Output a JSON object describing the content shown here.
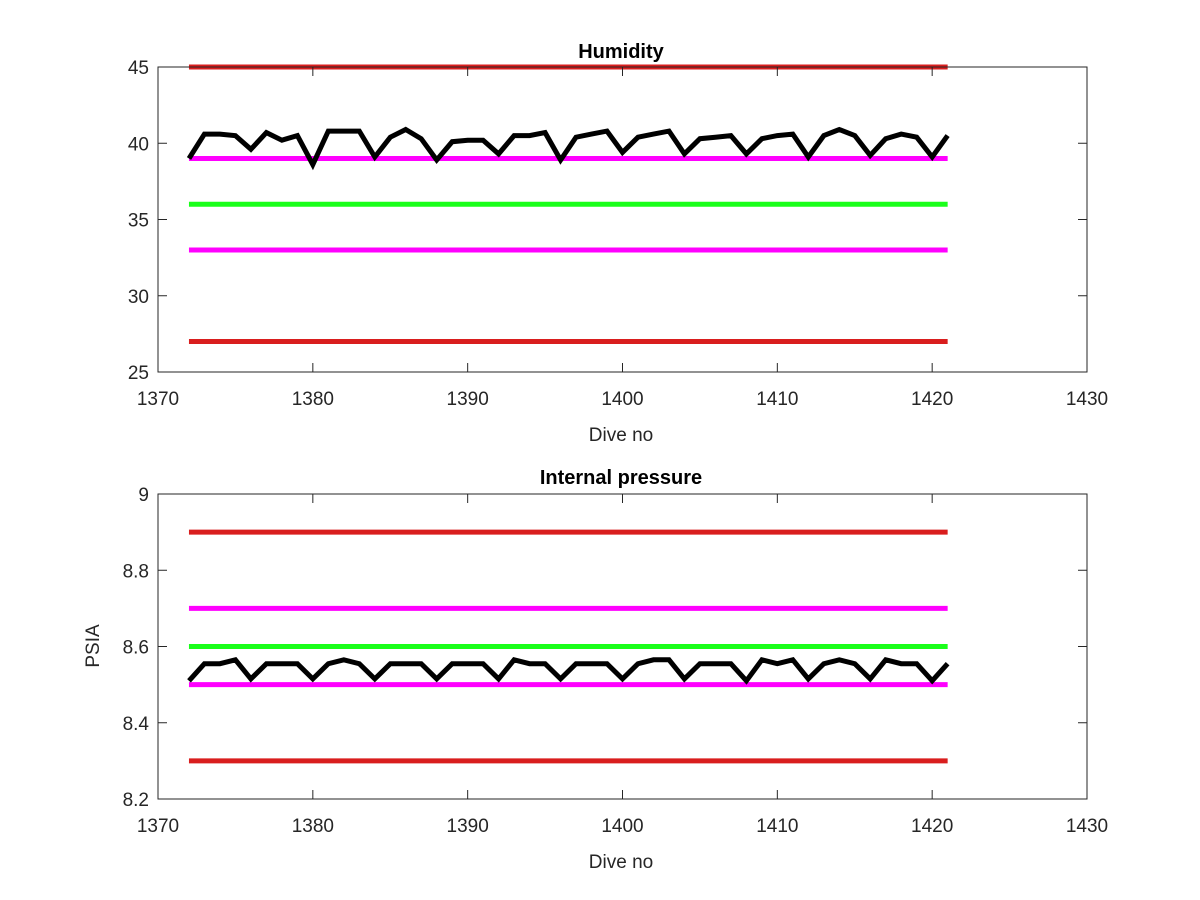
{
  "chart_data": [
    {
      "type": "line",
      "title": "Humidity",
      "xlabel": "Dive no",
      "ylabel": "",
      "xlim": [
        1370,
        1430
      ],
      "ylim": [
        25,
        45
      ],
      "xticks": [
        "1370",
        "1380",
        "1390",
        "1400",
        "1410",
        "1420",
        "1430"
      ],
      "yticks": [
        "25",
        "30",
        "35",
        "40",
        "45"
      ],
      "grid": false,
      "legend": "none",
      "reference_lines": [
        {
          "y": 45,
          "x_range": [
            1372,
            1421
          ],
          "color": "#d91e1e"
        },
        {
          "y": 39,
          "x_range": [
            1372,
            1421
          ],
          "color": "#ff00ff"
        },
        {
          "y": 36,
          "x_range": [
            1372,
            1421
          ],
          "color": "#1aff1a"
        },
        {
          "y": 33,
          "x_range": [
            1372,
            1421
          ],
          "color": "#ff00ff"
        },
        {
          "y": 27,
          "x_range": [
            1372,
            1421
          ],
          "color": "#d91e1e"
        }
      ],
      "series": [
        {
          "color": "#000000",
          "x": [
            1372,
            1373,
            1374,
            1375,
            1376,
            1377,
            1378,
            1379,
            1380,
            1381,
            1382,
            1383,
            1384,
            1385,
            1386,
            1387,
            1388,
            1389,
            1390,
            1391,
            1392,
            1393,
            1394,
            1395,
            1396,
            1397,
            1398,
            1399,
            1400,
            1401,
            1402,
            1403,
            1404,
            1405,
            1406,
            1407,
            1408,
            1409,
            1410,
            1411,
            1412,
            1413,
            1414,
            1415,
            1416,
            1417,
            1418,
            1419,
            1420,
            1421
          ],
          "y": [
            39.0,
            40.6,
            40.6,
            40.5,
            39.6,
            40.7,
            40.2,
            40.5,
            38.6,
            40.8,
            40.8,
            40.8,
            39.1,
            40.4,
            40.9,
            40.3,
            38.9,
            40.1,
            40.2,
            40.2,
            39.3,
            40.5,
            40.5,
            40.7,
            38.9,
            40.4,
            40.6,
            40.8,
            39.4,
            40.4,
            40.6,
            40.8,
            39.3,
            40.3,
            40.4,
            40.5,
            39.3,
            40.3,
            40.5,
            40.6,
            39.1,
            40.5,
            40.9,
            40.5,
            39.2,
            40.3,
            40.6,
            40.4,
            39.1,
            40.5
          ]
        }
      ]
    },
    {
      "type": "line",
      "title": "Internal pressure",
      "xlabel": "Dive no",
      "ylabel": "PSIA",
      "xlim": [
        1370,
        1430
      ],
      "ylim": [
        8.2,
        9.0
      ],
      "xticks": [
        "1370",
        "1380",
        "1390",
        "1400",
        "1410",
        "1420",
        "1430"
      ],
      "yticks": [
        "8.2",
        "8.4",
        "8.6",
        "8.8",
        "9"
      ],
      "grid": false,
      "legend": "none",
      "reference_lines": [
        {
          "y": 8.9,
          "x_range": [
            1372,
            1421
          ],
          "color": "#d91e1e"
        },
        {
          "y": 8.7,
          "x_range": [
            1372,
            1421
          ],
          "color": "#ff00ff"
        },
        {
          "y": 8.6,
          "x_range": [
            1372,
            1421
          ],
          "color": "#1aff1a"
        },
        {
          "y": 8.5,
          "x_range": [
            1372,
            1421
          ],
          "color": "#ff00ff"
        },
        {
          "y": 8.3,
          "x_range": [
            1372,
            1421
          ],
          "color": "#d91e1e"
        }
      ],
      "series": [
        {
          "color": "#000000",
          "x": [
            1372,
            1373,
            1374,
            1375,
            1376,
            1377,
            1378,
            1379,
            1380,
            1381,
            1382,
            1383,
            1384,
            1385,
            1386,
            1387,
            1388,
            1389,
            1390,
            1391,
            1392,
            1393,
            1394,
            1395,
            1396,
            1397,
            1398,
            1399,
            1400,
            1401,
            1402,
            1403,
            1404,
            1405,
            1406,
            1407,
            1408,
            1409,
            1410,
            1411,
            1412,
            1413,
            1414,
            1415,
            1416,
            1417,
            1418,
            1419,
            1420,
            1421
          ],
          "y": [
            8.51,
            8.555,
            8.555,
            8.565,
            8.515,
            8.555,
            8.555,
            8.555,
            8.515,
            8.555,
            8.565,
            8.555,
            8.515,
            8.555,
            8.555,
            8.555,
            8.515,
            8.555,
            8.555,
            8.555,
            8.515,
            8.565,
            8.555,
            8.555,
            8.515,
            8.555,
            8.555,
            8.555,
            8.515,
            8.555,
            8.565,
            8.565,
            8.515,
            8.555,
            8.555,
            8.555,
            8.51,
            8.565,
            8.555,
            8.565,
            8.515,
            8.555,
            8.565,
            8.555,
            8.515,
            8.565,
            8.555,
            8.555,
            8.51,
            8.555
          ]
        }
      ]
    }
  ]
}
